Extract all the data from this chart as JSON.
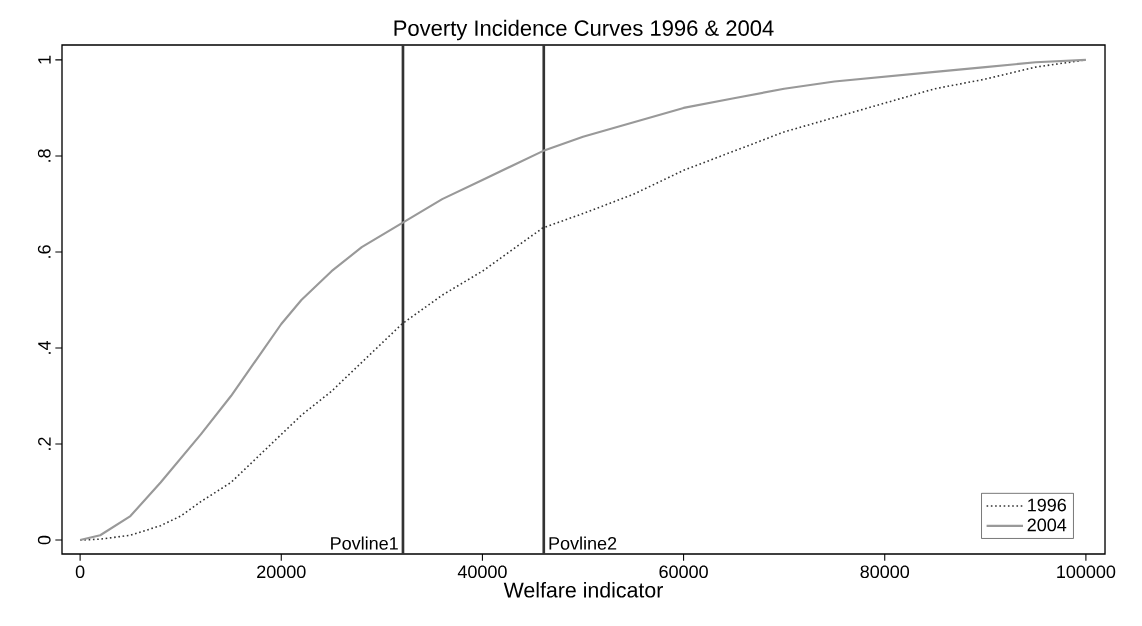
{
  "chart_data": {
    "type": "line",
    "title": "Poverty Incidence Curves 1996 & 2004",
    "xlabel": "Welfare indicator",
    "xlim": [
      -1800,
      101900
    ],
    "ylim": [
      -0.029,
      1.031
    ],
    "xticks": [
      0,
      20000,
      40000,
      60000,
      80000,
      100000
    ],
    "yticks": [
      0,
      {
        "value": 0.2,
        "label": ".2"
      },
      {
        "value": 0.4,
        "label": ".4"
      },
      {
        "value": 0.6,
        "label": ".6"
      },
      {
        "value": 0.8,
        "label": ".8"
      },
      1
    ],
    "grid": false,
    "legend": "bottom right",
    "marker": "none",
    "ref_lines": [
      {
        "axis": "x",
        "value": 32100,
        "label": "Povline1",
        "color": "#333333"
      },
      {
        "axis": "x",
        "value": 46100,
        "label": "Povline2",
        "color": "#333333"
      }
    ],
    "series": [
      {
        "name": "1996",
        "color": "#333333",
        "line_style": "dotted",
        "x": [
          0,
          2000,
          5000,
          8000,
          10000,
          12000,
          15000,
          18000,
          20000,
          22000,
          25000,
          28000,
          32000,
          36000,
          40000,
          46000,
          50000,
          55000,
          60000,
          65000,
          70000,
          75000,
          80000,
          85000,
          90000,
          95000,
          100000
        ],
        "values": [
          0,
          0.002,
          0.01,
          0.03,
          0.05,
          0.08,
          0.12,
          0.18,
          0.22,
          0.26,
          0.31,
          0.37,
          0.45,
          0.51,
          0.56,
          0.65,
          0.68,
          0.72,
          0.77,
          0.81,
          0.85,
          0.88,
          0.91,
          0.94,
          0.96,
          0.985,
          1
        ]
      },
      {
        "name": "2004",
        "color": "#999999",
        "line_style": "solid",
        "x": [
          0,
          2000,
          5000,
          8000,
          10000,
          12000,
          15000,
          18000,
          20000,
          22000,
          25000,
          28000,
          32000,
          36000,
          40000,
          46000,
          50000,
          55000,
          60000,
          65000,
          70000,
          75000,
          80000,
          85000,
          90000,
          95000,
          100000
        ],
        "values": [
          0,
          0.01,
          0.05,
          0.12,
          0.17,
          0.22,
          0.3,
          0.39,
          0.45,
          0.5,
          0.56,
          0.61,
          0.66,
          0.71,
          0.75,
          0.81,
          0.84,
          0.87,
          0.9,
          0.92,
          0.94,
          0.955,
          0.965,
          0.975,
          0.985,
          0.995,
          1
        ]
      }
    ]
  }
}
